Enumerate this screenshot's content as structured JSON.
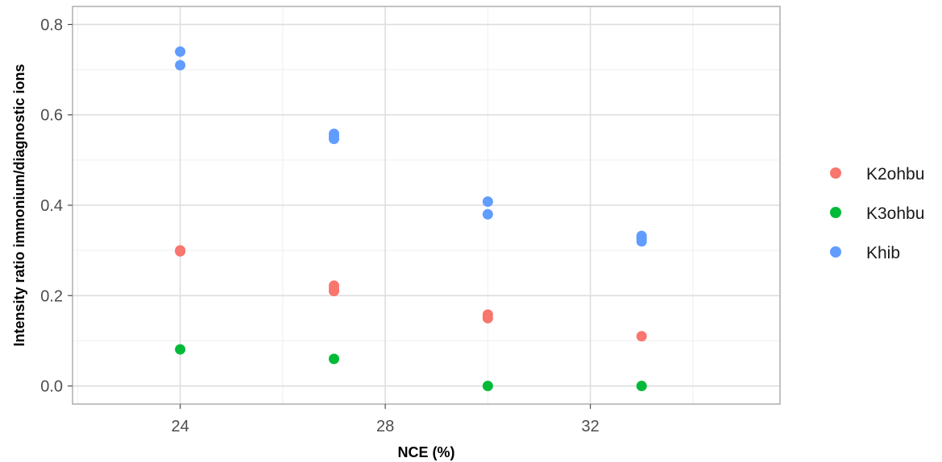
{
  "chart_data": {
    "type": "scatter",
    "xlabel": "NCE (%)",
    "ylabel": "Intensity ratio immonium/diagnostic ions",
    "xlim": [
      21.9,
      35.7
    ],
    "ylim": [
      -0.04,
      0.84
    ],
    "x_ticks": [
      24,
      28,
      32
    ],
    "y_ticks": [
      0.0,
      0.2,
      0.4,
      0.6,
      0.8
    ],
    "x_tick_labels": [
      "24",
      "28",
      "32"
    ],
    "y_tick_labels": [
      "0.0",
      "0.2",
      "0.4",
      "0.6",
      "0.8"
    ],
    "grid": true,
    "legend_position": "right",
    "series": [
      {
        "name": "K2ohbu",
        "color": "#F8766D",
        "points": [
          {
            "x": 24,
            "y": 0.3
          },
          {
            "x": 24,
            "y": 0.298
          },
          {
            "x": 27,
            "y": 0.222
          },
          {
            "x": 27,
            "y": 0.215
          },
          {
            "x": 27,
            "y": 0.21
          },
          {
            "x": 30,
            "y": 0.158
          },
          {
            "x": 30,
            "y": 0.15
          },
          {
            "x": 33,
            "y": 0.11
          }
        ]
      },
      {
        "name": "K3ohbu",
        "color": "#00BA38",
        "points": [
          {
            "x": 24,
            "y": 0.081
          },
          {
            "x": 27,
            "y": 0.06
          },
          {
            "x": 30,
            "y": 0.0
          },
          {
            "x": 33,
            "y": 0.0
          }
        ]
      },
      {
        "name": "Khib",
        "color": "#619CFF",
        "points": [
          {
            "x": 24,
            "y": 0.74
          },
          {
            "x": 24,
            "y": 0.71
          },
          {
            "x": 27,
            "y": 0.558
          },
          {
            "x": 27,
            "y": 0.552
          },
          {
            "x": 27,
            "y": 0.547
          },
          {
            "x": 30,
            "y": 0.408
          },
          {
            "x": 30,
            "y": 0.38
          },
          {
            "x": 33,
            "y": 0.332
          },
          {
            "x": 33,
            "y": 0.326
          },
          {
            "x": 33,
            "y": 0.32
          }
        ]
      }
    ]
  }
}
